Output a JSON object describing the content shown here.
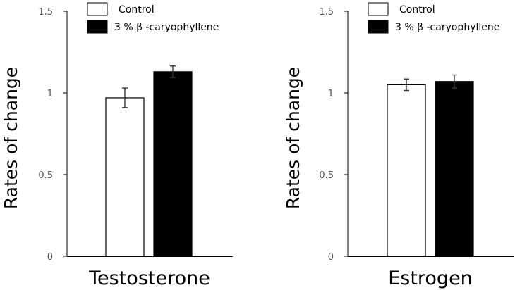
{
  "chart_data": [
    {
      "type": "bar",
      "categories": [
        "Testosterone"
      ],
      "xlabel": "Testosterone",
      "ylabel": "Rates of change",
      "ylim": [
        0,
        1.5
      ],
      "yticks": [
        "0",
        "0.5",
        "1",
        "1.5"
      ],
      "grid": false,
      "legend": "top-right",
      "series": [
        {
          "name": "Control",
          "values": [
            0.97
          ],
          "errors": [
            0.06
          ],
          "color": "#ffffff"
        },
        {
          "name": "3 % β -caryophyllene",
          "values": [
            1.13
          ],
          "errors": [
            0.035
          ],
          "color": "#000000"
        }
      ]
    },
    {
      "type": "bar",
      "categories": [
        "Estrogen"
      ],
      "xlabel": "Estrogen",
      "ylabel": "Rates of change",
      "ylim": [
        0,
        1.5
      ],
      "yticks": [
        "0",
        "0.5",
        "1",
        "1.5"
      ],
      "grid": false,
      "legend": "top-right",
      "series": [
        {
          "name": "Control",
          "values": [
            1.05
          ],
          "errors": [
            0.035
          ],
          "color": "#ffffff"
        },
        {
          "name": "3 % β -caryophyllene",
          "values": [
            1.07
          ],
          "errors": [
            0.04
          ],
          "color": "#000000"
        }
      ]
    }
  ]
}
